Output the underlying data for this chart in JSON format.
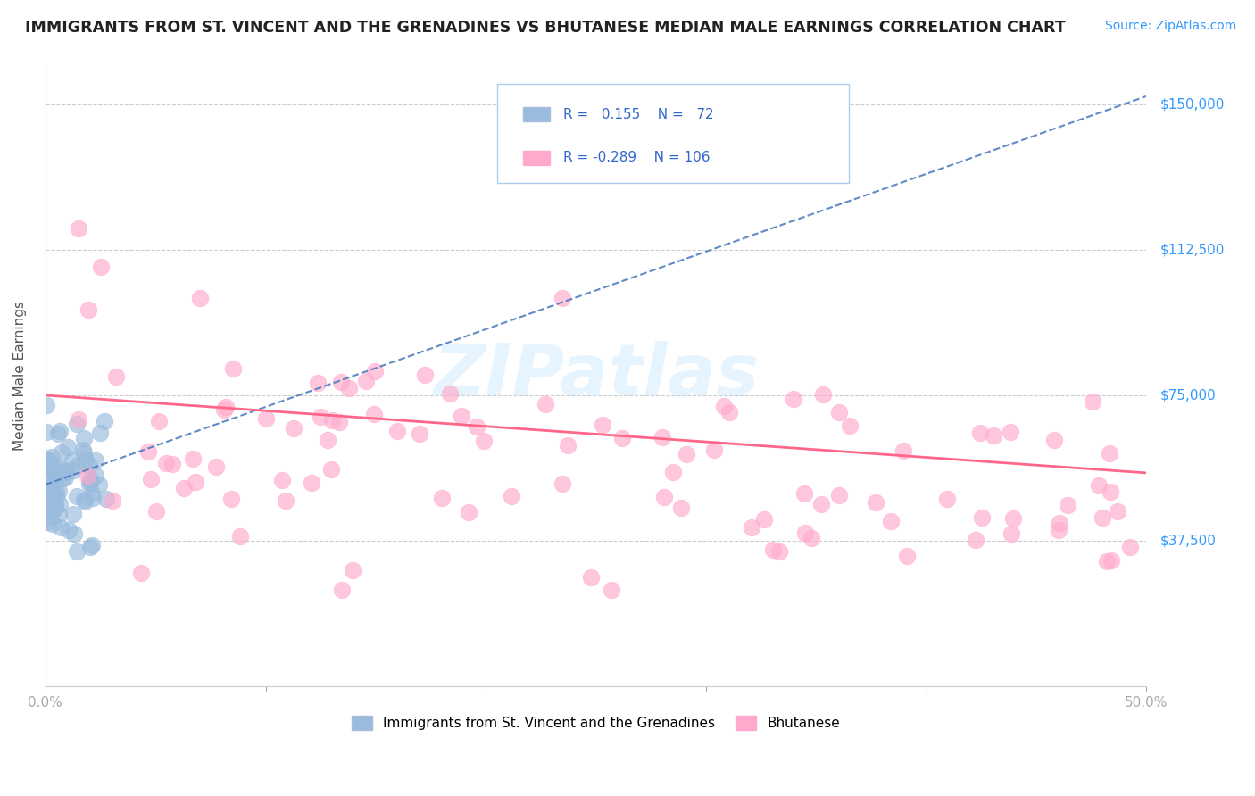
{
  "title": "IMMIGRANTS FROM ST. VINCENT AND THE GRENADINES VS BHUTANESE MEDIAN MALE EARNINGS CORRELATION CHART",
  "source": "Source: ZipAtlas.com",
  "ylabel": "Median Male Earnings",
  "xlim": [
    0.0,
    0.5
  ],
  "ylim": [
    0,
    160000
  ],
  "yticks": [
    0,
    37500,
    75000,
    112500,
    150000
  ],
  "ytick_labels": [
    "",
    "$37,500",
    "$75,000",
    "$112,500",
    "$150,000"
  ],
  "xticks": [
    0.0,
    0.1,
    0.2,
    0.3,
    0.4,
    0.5
  ],
  "xtick_labels": [
    "0.0%",
    "",
    "",
    "",
    "",
    "50.0%"
  ],
  "blue_R": 0.155,
  "blue_N": 72,
  "pink_R": -0.289,
  "pink_N": 106,
  "blue_color": "#99BBDD",
  "pink_color": "#FFAACC",
  "blue_line_color": "#4477BB",
  "pink_line_color": "#FF6688",
  "legend_label_blue": "Immigrants from St. Vincent and the Grenadines",
  "legend_label_pink": "Bhutanese",
  "blue_seed": 7,
  "pink_seed": 13
}
